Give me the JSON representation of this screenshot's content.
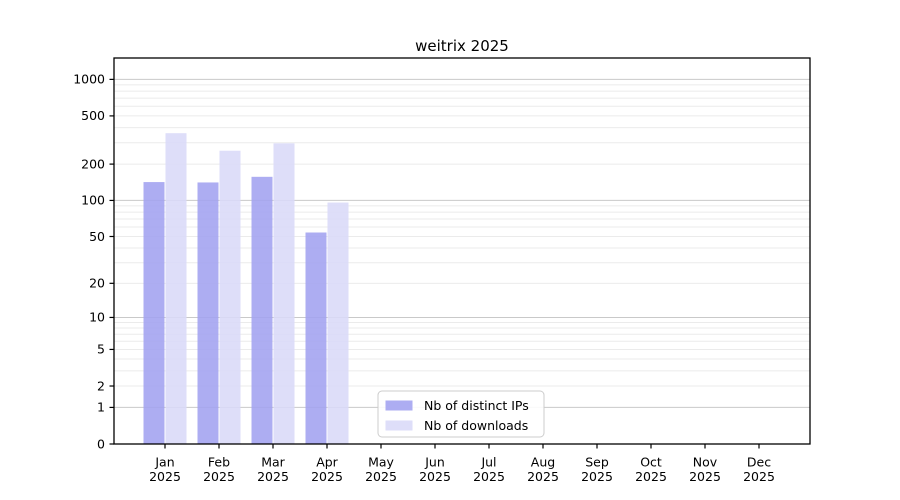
{
  "chart_data": {
    "type": "bar",
    "title": "weitrix 2025",
    "categories": [
      "Jan 2025",
      "Feb 2025",
      "Mar 2025",
      "Apr 2025",
      "May 2025",
      "Jun 2025",
      "Jul 2025",
      "Aug 2025",
      "Sep 2025",
      "Oct 2025",
      "Nov 2025",
      "Dec 2025"
    ],
    "series": [
      {
        "name": "Nb of distinct IPs",
        "color": "#a2a2f0",
        "values": [
          142,
          141,
          157,
          54,
          0,
          0,
          0,
          0,
          0,
          0,
          0,
          0
        ]
      },
      {
        "name": "Nb of downloads",
        "color": "#d9d9f8",
        "values": [
          360,
          258,
          297,
          96,
          0,
          0,
          0,
          0,
          0,
          0,
          0,
          0
        ]
      }
    ],
    "y_scale": "log1p",
    "ylim": [
      0,
      1500
    ],
    "y_ticks": [
      0,
      1,
      2,
      5,
      10,
      20,
      50,
      100,
      200,
      500,
      1000
    ],
    "y_minor_ticks": [
      3,
      4,
      6,
      7,
      8,
      9,
      30,
      40,
      60,
      70,
      80,
      90,
      300,
      400,
      600,
      700,
      800,
      900
    ],
    "grid": "horizontal",
    "legend": {
      "position": "bottom-center",
      "entries": [
        "Nb of distinct IPs",
        "Nb of downloads"
      ]
    },
    "colors": {
      "major_gridline": "#c9c9c9",
      "minor_gridline": "#ebebeb",
      "axis_border": "#000000",
      "legend_border": "#cccccc",
      "background": "#ffffff",
      "text": "#000000"
    }
  }
}
